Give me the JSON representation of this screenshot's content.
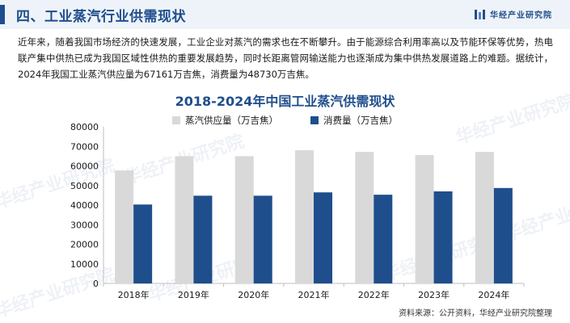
{
  "watermark": "华经产业研究院",
  "header": {
    "title": "四、工业蒸汽行业供需现状",
    "brand": "华经产业研究院"
  },
  "intro": "近年来，随着我国市场经济的快速发展，工业企业对蒸汽的需求也在不断攀升。由于能源综合利用率高以及节能环保等优势，热电联产集中供热已成为我国区域性供热的重要发展趋势，同时长距离管网输送能力也逐渐成为集中供热发展道路上的难题。据统计，2024年我国工业蒸汽供应量为67161万吉焦，消费量为48730万吉焦。",
  "chart_data": {
    "type": "bar",
    "title": "2018-2024年中国工业蒸汽供需现状",
    "categories": [
      "2018年",
      "2019年",
      "2020年",
      "2021年",
      "2022年",
      "2023年",
      "2024年"
    ],
    "series": [
      {
        "name": "蒸汽供应量（万吉焦）",
        "color": "#d9d9d9",
        "values": [
          57700,
          65000,
          65000,
          68000,
          67200,
          65600,
          67161
        ]
      },
      {
        "name": "消费量（万吉焦）",
        "color": "#1f4e8c",
        "values": [
          40300,
          44800,
          44800,
          46500,
          45300,
          47000,
          48730
        ]
      }
    ],
    "ylim": [
      0,
      80000
    ],
    "yticks": [
      0,
      10000,
      20000,
      30000,
      40000,
      50000,
      60000,
      70000,
      80000
    ],
    "grid": false,
    "legend": "top-center"
  },
  "source": "资料来源：公开资料，华经产业研究院整理"
}
